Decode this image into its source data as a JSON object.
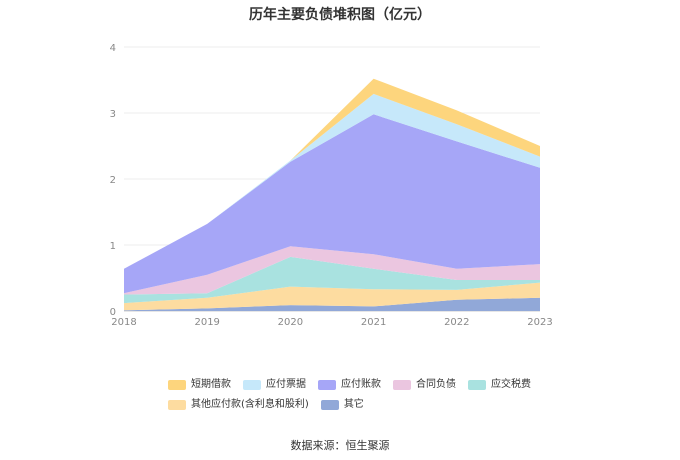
{
  "chart_data": {
    "type": "area",
    "stacked": true,
    "title": "历年主要负债堆积图（亿元）",
    "x": [
      "2018",
      "2019",
      "2020",
      "2021",
      "2022",
      "2023"
    ],
    "ylim": [
      0,
      4
    ],
    "yticks": [
      "0",
      "1",
      "2",
      "3",
      "4"
    ],
    "grid": true,
    "legend_position": "bottom",
    "series": [
      {
        "name": "其它",
        "color": "#91a8d8",
        "values": [
          0.01,
          0.04,
          0.09,
          0.07,
          0.17,
          0.2
        ]
      },
      {
        "name": "其他应付款(含利息和股利)",
        "color": "#fddca0",
        "values": [
          0.11,
          0.16,
          0.28,
          0.26,
          0.15,
          0.23
        ]
      },
      {
        "name": "应交税费",
        "color": "#a9e2e0",
        "values": [
          0.13,
          0.07,
          0.45,
          0.31,
          0.15,
          0.04
        ]
      },
      {
        "name": "合同负债",
        "color": "#ebc6e0",
        "values": [
          0.02,
          0.28,
          0.16,
          0.22,
          0.17,
          0.24
        ]
      },
      {
        "name": "应付账款",
        "color": "#a6a6f7",
        "values": [
          0.37,
          0.77,
          1.28,
          2.12,
          1.93,
          1.46
        ]
      },
      {
        "name": "应付票据",
        "color": "#c6e8fa",
        "values": [
          0,
          0,
          0.02,
          0.31,
          0.26,
          0.17
        ]
      },
      {
        "name": "短期借款",
        "color": "#fdd57d",
        "values": [
          0,
          0,
          0,
          0.23,
          0.21,
          0.16
        ]
      }
    ]
  },
  "legend_row1": [
    "短期借款",
    "应付票据",
    "应付账款",
    "合同负债",
    "应交税费"
  ],
  "legend_row2": [
    "其他应付款(含利息和股利)",
    "其它"
  ],
  "source": "数据来源：恒生聚源"
}
